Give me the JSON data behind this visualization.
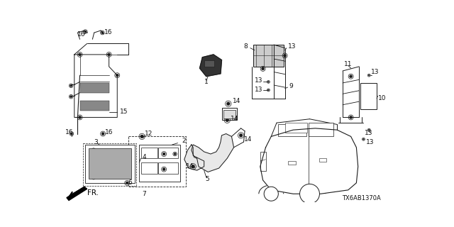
{
  "background_color": "#ffffff",
  "diagram_id": "TX6AB1370A",
  "line_color": "#1a1a1a",
  "label_color": "#111111",
  "font_size": 6.5,
  "figsize": [
    6.4,
    3.2
  ],
  "dpi": 100
}
